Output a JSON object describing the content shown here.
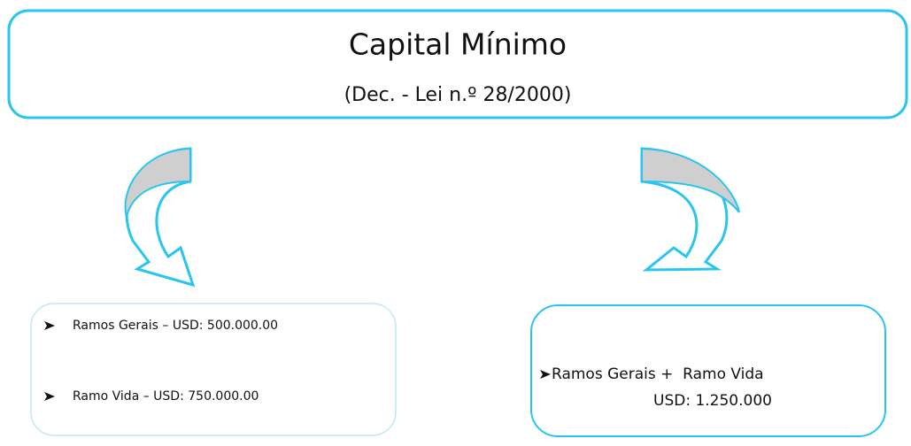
{
  "header": {
    "title": "Capital Mínimo",
    "subtitle": "(Dec. - Lei n.º 28/2000)"
  },
  "left_box": {
    "items": [
      "Ramos Gerais – USD: 500.000.00",
      "Ramo Vida – USD: 750.000.00"
    ]
  },
  "right_box": {
    "lines": [
      "Ramos Gerais +  Ramo Vida",
      "USD: 1.250.000"
    ]
  }
}
